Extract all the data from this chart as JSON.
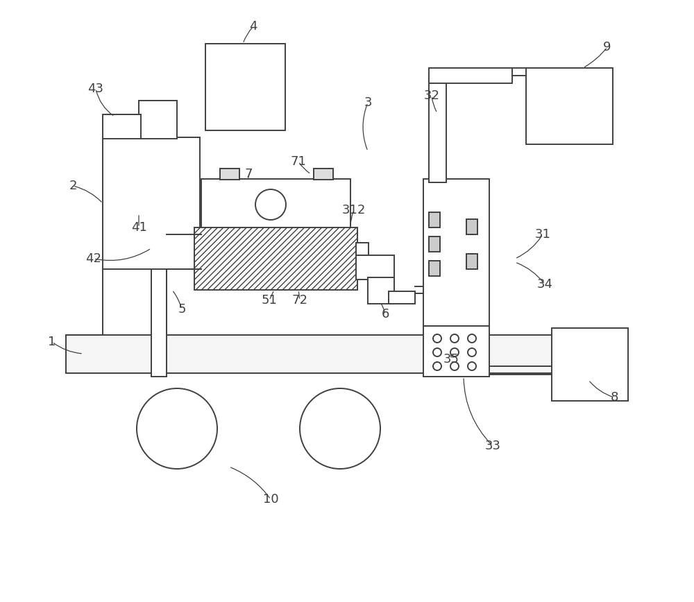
{
  "bg_color": "#ffffff",
  "line_color": "#404040",
  "lw": 1.4,
  "fig_width": 10.0,
  "fig_height": 8.68
}
